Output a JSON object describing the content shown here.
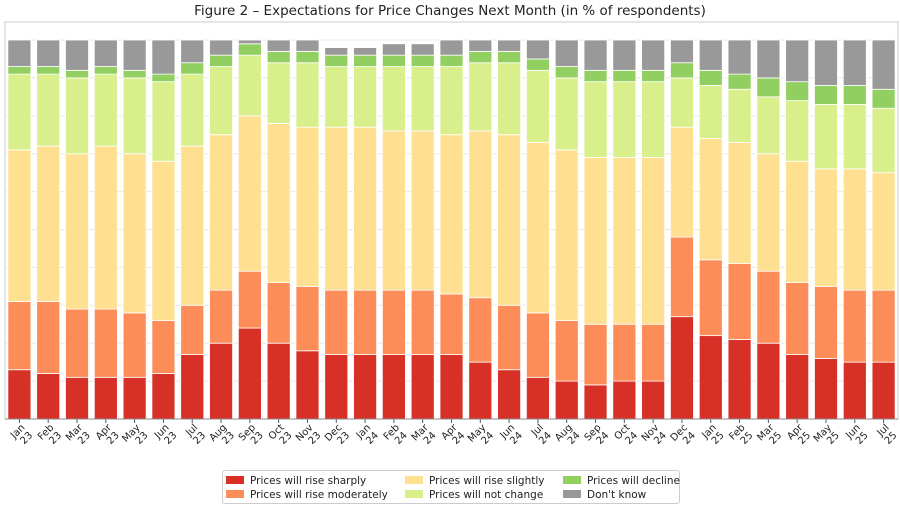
{
  "chart_data": {
    "type": "bar",
    "stacked": true,
    "title": "Figure 2 – Expectations for Price Changes Next Month (in % of respondents)",
    "xlabel": "",
    "ylabel": "",
    "ylim": [
      0,
      100
    ],
    "grid": true,
    "legend_position": "bottom",
    "categories": [
      [
        "Jan",
        "23"
      ],
      [
        "Feb",
        "23"
      ],
      [
        "Mar",
        "23"
      ],
      [
        "Apr",
        "23"
      ],
      [
        "May",
        "23"
      ],
      [
        "Jun",
        "23"
      ],
      [
        "Jul",
        "23"
      ],
      [
        "Aug",
        "23"
      ],
      [
        "Sep",
        "23"
      ],
      [
        "Oct",
        "23"
      ],
      [
        "Nov",
        "23"
      ],
      [
        "Dec",
        "23"
      ],
      [
        "Jan",
        "24"
      ],
      [
        "Feb",
        "24"
      ],
      [
        "Mar",
        "24"
      ],
      [
        "Apr",
        "24"
      ],
      [
        "May",
        "24"
      ],
      [
        "Jun",
        "24"
      ],
      [
        "Jul",
        "24"
      ],
      [
        "Aug",
        "24"
      ],
      [
        "Sep",
        "24"
      ],
      [
        "Oct",
        "24"
      ],
      [
        "Nov",
        "24"
      ],
      [
        "Dec",
        "24"
      ],
      [
        "Jan",
        "25"
      ],
      [
        "Feb",
        "25"
      ],
      [
        "Mar",
        "25"
      ],
      [
        "Apr",
        "25"
      ],
      [
        "May",
        "25"
      ],
      [
        "Jun",
        "25"
      ],
      [
        "Jul",
        "25"
      ]
    ],
    "series": [
      {
        "name": "Prices will rise sharply",
        "color": "#d73027",
        "values": [
          13,
          12,
          11,
          11,
          11,
          12,
          17,
          20,
          24,
          20,
          18,
          17,
          17,
          17,
          17,
          17,
          15,
          13,
          11,
          10,
          9,
          10,
          10,
          27,
          22,
          21,
          20,
          17,
          16,
          15,
          15
        ]
      },
      {
        "name": "Prices will rise moderately",
        "color": "#fc8d59",
        "values": [
          18,
          19,
          18,
          18,
          17,
          14,
          13,
          14,
          15,
          16,
          17,
          17,
          17,
          17,
          17,
          16,
          17,
          17,
          17,
          16,
          16,
          15,
          15,
          21,
          20,
          20,
          19,
          19,
          19,
          19,
          19
        ]
      },
      {
        "name": "Prices will rise slightly",
        "color": "#fee090",
        "values": [
          40,
          41,
          41,
          43,
          42,
          42,
          42,
          41,
          41,
          42,
          42,
          43,
          43,
          42,
          42,
          42,
          44,
          45,
          45,
          45,
          44,
          44,
          44,
          29,
          32,
          32,
          31,
          32,
          31,
          32,
          31
        ]
      },
      {
        "name": "Prices will not change",
        "color": "#d9ef8b",
        "values": [
          20,
          19,
          20,
          19,
          20,
          21,
          19,
          18,
          16,
          16,
          17,
          16,
          16,
          17,
          17,
          18,
          18,
          19,
          19,
          19,
          20,
          20,
          20,
          13,
          14,
          14,
          15,
          16,
          17,
          17,
          17
        ]
      },
      {
        "name": "Prices will decline",
        "color": "#91cf60",
        "values": [
          2,
          2,
          2,
          2,
          2,
          2,
          3,
          3,
          3,
          3,
          3,
          3,
          3,
          3,
          3,
          3,
          3,
          3,
          3,
          3,
          3,
          3,
          3,
          4,
          4,
          4,
          5,
          5,
          5,
          5,
          5
        ]
      },
      {
        "name": "Don't know",
        "color": "#999999",
        "values": [
          7,
          7,
          8,
          7,
          8,
          9,
          6,
          4,
          1,
          3,
          3,
          2,
          2,
          3,
          3,
          4,
          3,
          3,
          5,
          7,
          8,
          8,
          8,
          6,
          8,
          9,
          10,
          11,
          12,
          12,
          13
        ]
      }
    ]
  },
  "legend": {
    "items": [
      {
        "label": "Prices will rise sharply",
        "color": "#d73027"
      },
      {
        "label": "Prices will rise moderately",
        "color": "#fc8d59"
      },
      {
        "label": "Prices will rise slightly",
        "color": "#fee090"
      },
      {
        "label": "Prices will not change",
        "color": "#d9ef8b"
      },
      {
        "label": "Prices will decline",
        "color": "#91cf60"
      },
      {
        "label": "Don't know",
        "color": "#999999"
      }
    ]
  }
}
